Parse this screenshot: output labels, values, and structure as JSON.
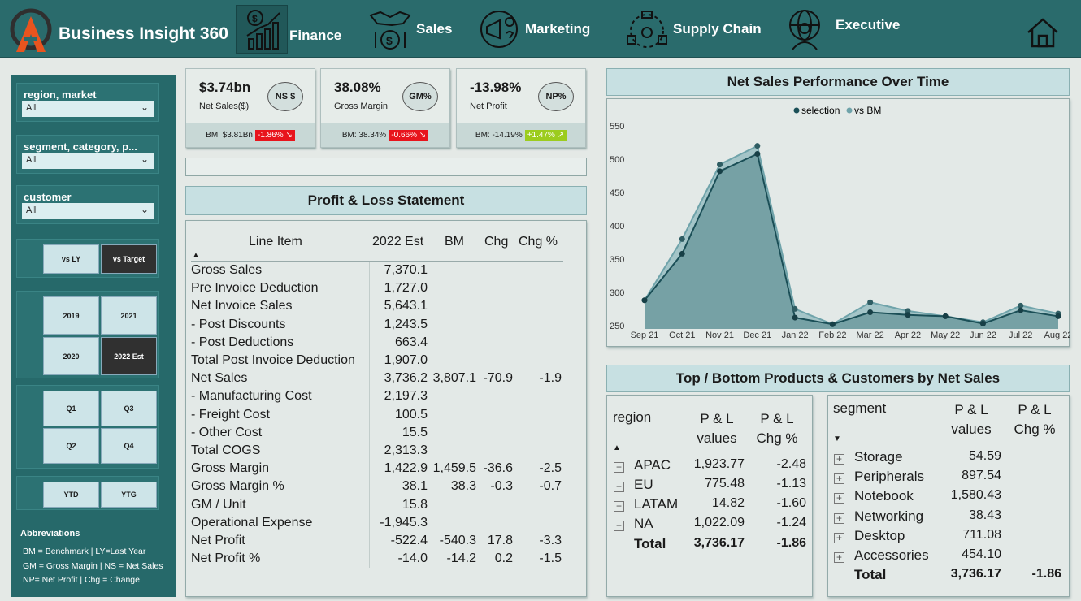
{
  "app": {
    "title": "Business Insight 360"
  },
  "nav": [
    {
      "label": "Finance",
      "icon": "finance-chart-icon"
    },
    {
      "label": "Sales",
      "icon": "sales-handshake-icon"
    },
    {
      "label": "Marketing",
      "icon": "marketing-megaphone-icon"
    },
    {
      "label": "Supply Chain",
      "icon": "supply-chain-icon"
    },
    {
      "label": "Executive",
      "icon": "executive-person-icon"
    }
  ],
  "filters": {
    "region": {
      "label": "region, market",
      "value": "All"
    },
    "segment": {
      "label": "segment, category, p...",
      "value": "All"
    },
    "customer": {
      "label": "customer",
      "value": "All"
    }
  },
  "toggles": {
    "vs_ly": "vs LY",
    "vs_target": "vs Target"
  },
  "years": [
    "2019",
    "2021",
    "2020",
    "2022 Est"
  ],
  "quarters": [
    "Q1",
    "Q3",
    "Q2",
    "Q4"
  ],
  "period": {
    "ytd": "YTD",
    "ytg": "YTG"
  },
  "abbreviations": {
    "title": "Abbreviations",
    "lines": [
      "BM = Benchmark | LY=Last Year",
      "GM = Gross Margin | NS = Net Sales",
      "NP= Net Profit | Chg = Change"
    ]
  },
  "kpis": [
    {
      "value": "$3.74bn",
      "label": "Net Sales($)",
      "badge": "NS $",
      "bm": "BM: $3.81Bn",
      "chg": "-1.86% ↘",
      "chg_color": "red"
    },
    {
      "value": "38.08%",
      "label": "Gross Margin",
      "badge": "GM%",
      "bm": "BM: 38.34%",
      "chg": "-0.66% ↘",
      "chg_color": "red"
    },
    {
      "value": "-13.98%",
      "label": "Net Profit",
      "badge": "NP%",
      "bm": "BM: -14.19%",
      "chg": "+1.47% ↗",
      "chg_color": "green"
    }
  ],
  "pl": {
    "title": "Profit & Loss Statement",
    "headers": [
      "Line Item",
      "2022 Est",
      "BM",
      "Chg",
      "Chg %"
    ],
    "rows": [
      [
        "Gross Sales",
        "7,370.1",
        "",
        "",
        ""
      ],
      [
        "Pre Invoice Deduction",
        "1,727.0",
        "",
        "",
        ""
      ],
      [
        "Net Invoice Sales",
        "5,643.1",
        "",
        "",
        ""
      ],
      [
        "- Post Discounts",
        "1,243.5",
        "",
        "",
        ""
      ],
      [
        "- Post Deductions",
        "663.4",
        "",
        "",
        ""
      ],
      [
        "Total Post Invoice Deduction",
        "1,907.0",
        "",
        "",
        ""
      ],
      [
        "Net Sales",
        "3,736.2",
        "3,807.1",
        "-70.9",
        "-1.9"
      ],
      [
        "- Manufacturing Cost",
        "2,197.3",
        "",
        "",
        ""
      ],
      [
        "- Freight Cost",
        "100.5",
        "",
        "",
        ""
      ],
      [
        "- Other Cost",
        "15.5",
        "",
        "",
        ""
      ],
      [
        "Total COGS",
        "2,313.3",
        "",
        "",
        ""
      ],
      [
        "Gross Margin",
        "1,422.9",
        "1,459.5",
        "-36.6",
        "-2.5"
      ],
      [
        "Gross Margin %",
        "38.1",
        "38.3",
        "-0.3",
        "-0.7"
      ],
      [
        "GM / Unit",
        "15.8",
        "",
        "",
        ""
      ],
      [
        "Operational Expense",
        "-1,945.3",
        "",
        "",
        ""
      ],
      [
        "Net Profit",
        "-522.4",
        "-540.3",
        "17.8",
        "-3.3"
      ],
      [
        "Net Profit %",
        "-14.0",
        "-14.2",
        "0.2",
        "-1.5"
      ]
    ]
  },
  "chart_data": {
    "type": "area",
    "title": "Net Sales Performance Over Time",
    "legend": [
      "selection",
      "vs BM"
    ],
    "categories": [
      "Sep 21",
      "Oct 21",
      "Nov 21",
      "Dec 21",
      "Jan 22",
      "Feb 22",
      "Mar 22",
      "Apr 22",
      "May 22",
      "Jun 22",
      "Jul 22",
      "Aug 22"
    ],
    "series": [
      {
        "name": "selection",
        "values": [
          288,
          358,
          482,
          508,
          262,
          252,
          270,
          266,
          264,
          253,
          273,
          264
        ]
      },
      {
        "name": "vs BM",
        "values": [
          288,
          380,
          492,
          520,
          275,
          252,
          285,
          272,
          264,
          255,
          280,
          268
        ]
      }
    ],
    "yticks": [
      250,
      300,
      350,
      400,
      450,
      500,
      550
    ],
    "ylim": [
      240,
      560
    ]
  },
  "topbottom": {
    "title": "Top / Bottom Products & Customers by Net Sales",
    "region": {
      "headers": [
        "region",
        "P & L values",
        "P & L Chg %"
      ],
      "rows": [
        [
          "APAC",
          "1,923.77",
          "-2.48"
        ],
        [
          "EU",
          "775.48",
          "-1.13"
        ],
        [
          "LATAM",
          "14.82",
          "-1.60"
        ],
        [
          "NA",
          "1,022.09",
          "-1.24"
        ]
      ],
      "total": [
        "Total",
        "3,736.17",
        "-1.86"
      ]
    },
    "segment": {
      "headers": [
        "segment",
        "P & L values",
        "P & L Chg %"
      ],
      "rows": [
        [
          "Storage",
          "54.59",
          ""
        ],
        [
          "Peripherals",
          "897.54",
          ""
        ],
        [
          "Notebook",
          "1,580.43",
          ""
        ],
        [
          "Networking",
          "38.43",
          ""
        ],
        [
          "Desktop",
          "711.08",
          ""
        ],
        [
          "Accessories",
          "454.10",
          ""
        ]
      ],
      "total": [
        "Total",
        "3,736.17",
        "-1.86"
      ]
    }
  },
  "colors": {
    "header": "#2a6b6c",
    "sidebar": "#26696a",
    "accent": "#c7e0e2",
    "line_selection": "#1b4f57",
    "line_bm": "#6fa3aa"
  }
}
